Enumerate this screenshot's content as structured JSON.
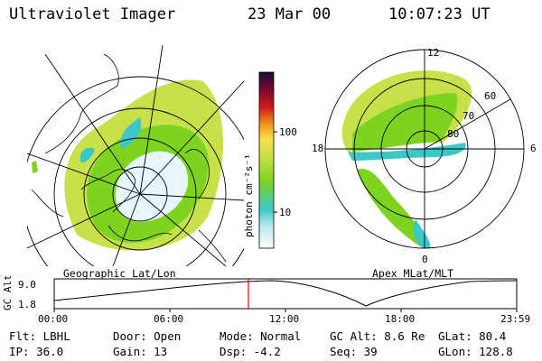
{
  "header": {
    "instrument": "Ultraviolet Imager",
    "date": "23 Mar 00",
    "time": "10:07:23 UT"
  },
  "geographic_panel": {
    "caption": "Geographic Lat/Lon"
  },
  "apex_panel": {
    "caption": "Apex MLat/MLT",
    "mlt_labels": {
      "top": "12",
      "left": "18",
      "right": "6",
      "bottom": "0"
    },
    "lat_labels": [
      "60",
      "70",
      "80"
    ]
  },
  "colorbar": {
    "unit_label": "photon cm⁻²s⁻¹",
    "ticks": [
      "100",
      "10"
    ]
  },
  "orbit_plot": {
    "ylabel": "GC Alt",
    "y_ticks": [
      "9.0",
      "1.8"
    ],
    "x_ticks": [
      "00:00",
      "06:00",
      "12:00",
      "18:00",
      "23:59"
    ],
    "marker_color": "#ff0000"
  },
  "status": {
    "flt": "Flt: LBHL",
    "door": "Door: Open",
    "mode": "Mode: Normal",
    "gc_alt": "GC Alt: 8.6 Re",
    "glat": "GLat: 80.4",
    "ip": "IP: 36.0",
    "gain": "Gain: 13",
    "dsp": "Dsp:   -4.2",
    "seq": "Seq: 39",
    "glon": "GLon: 128.8"
  },
  "colors": {
    "green": "#7ed321",
    "yellow_green": "#c8e04a",
    "cyan": "#3cc8c8",
    "white_blue": "#e6f6fa"
  }
}
